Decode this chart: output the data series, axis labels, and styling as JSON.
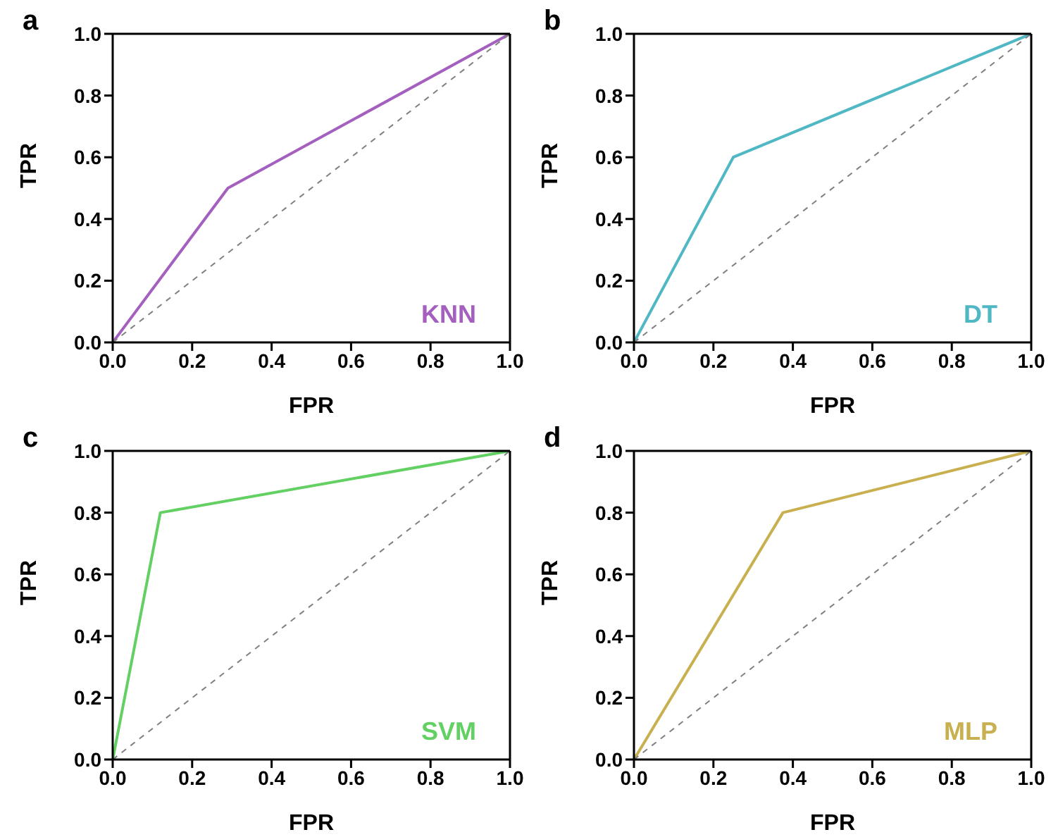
{
  "chart_data": [
    {
      "type": "line",
      "title": "a",
      "xlabel": "FPR",
      "ylabel": "TPR",
      "xlim": [
        0,
        1
      ],
      "ylim": [
        0,
        1
      ],
      "xticks": [
        {
          "value": 0,
          "label": "0.0"
        },
        {
          "value": 0.2,
          "label": "0.2"
        },
        {
          "value": 0.4,
          "label": "0.4"
        },
        {
          "value": 0.6,
          "label": "0.6"
        },
        {
          "value": 0.8,
          "label": "0.8"
        },
        {
          "value": 1,
          "label": "1.0"
        }
      ],
      "yticks": [
        {
          "value": 0,
          "label": "0.0"
        },
        {
          "value": 0.2,
          "label": "0.2"
        },
        {
          "value": 0.4,
          "label": "0.4"
        },
        {
          "value": 0.6,
          "label": "0.6"
        },
        {
          "value": 0.8,
          "label": "0.8"
        },
        {
          "value": 1,
          "label": "1.0"
        }
      ],
      "series": [
        {
          "name": "KNN",
          "color": "#a45fbf",
          "x": [
            0,
            0.29,
            1
          ],
          "values": [
            0,
            0.5,
            1
          ]
        },
        {
          "color": "#808080",
          "line_style": "dashed",
          "x": [
            0,
            1
          ],
          "values": [
            0,
            1
          ]
        }
      ]
    },
    {
      "type": "line",
      "title": "b",
      "xlabel": "FPR",
      "ylabel": "TPR",
      "xlim": [
        0,
        1
      ],
      "ylim": [
        0,
        1
      ],
      "xticks": [
        {
          "value": 0,
          "label": "0.0"
        },
        {
          "value": 0.2,
          "label": "0.2"
        },
        {
          "value": 0.4,
          "label": "0.4"
        },
        {
          "value": 0.6,
          "label": "0.6"
        },
        {
          "value": 0.8,
          "label": "0.8"
        },
        {
          "value": 1,
          "label": "1.0"
        }
      ],
      "yticks": [
        {
          "value": 0,
          "label": "0.0"
        },
        {
          "value": 0.2,
          "label": "0.2"
        },
        {
          "value": 0.4,
          "label": "0.4"
        },
        {
          "value": 0.6,
          "label": "0.6"
        },
        {
          "value": 0.8,
          "label": "0.8"
        },
        {
          "value": 1,
          "label": "1.0"
        }
      ],
      "series": [
        {
          "name": "DT",
          "color": "#4fb8c4",
          "x": [
            0,
            0.25,
            1
          ],
          "values": [
            0,
            0.6,
            1
          ]
        },
        {
          "color": "#808080",
          "line_style": "dashed",
          "x": [
            0,
            1
          ],
          "values": [
            0,
            1
          ]
        }
      ]
    },
    {
      "type": "line",
      "title": "c",
      "xlabel": "FPR",
      "ylabel": "TPR",
      "xlim": [
        0,
        1
      ],
      "ylim": [
        0,
        1
      ],
      "xticks": [
        {
          "value": 0,
          "label": "0.0"
        },
        {
          "value": 0.2,
          "label": "0.2"
        },
        {
          "value": 0.4,
          "label": "0.4"
        },
        {
          "value": 0.6,
          "label": "0.6"
        },
        {
          "value": 0.8,
          "label": "0.8"
        },
        {
          "value": 1,
          "label": "1.0"
        }
      ],
      "yticks": [
        {
          "value": 0,
          "label": "0.0"
        },
        {
          "value": 0.2,
          "label": "0.2"
        },
        {
          "value": 0.4,
          "label": "0.4"
        },
        {
          "value": 0.6,
          "label": "0.6"
        },
        {
          "value": 0.8,
          "label": "0.8"
        },
        {
          "value": 1,
          "label": "1.0"
        }
      ],
      "series": [
        {
          "name": "SVM",
          "color": "#62d062",
          "x": [
            0,
            0.12,
            1
          ],
          "values": [
            0,
            0.8,
            1
          ]
        },
        {
          "color": "#808080",
          "line_style": "dashed",
          "x": [
            0,
            1
          ],
          "values": [
            0,
            1
          ]
        }
      ]
    },
    {
      "type": "line",
      "title": "d",
      "xlabel": "FPR",
      "ylabel": "TPR",
      "xlim": [
        0,
        1
      ],
      "ylim": [
        0,
        1
      ],
      "xticks": [
        {
          "value": 0,
          "label": "0.0"
        },
        {
          "value": 0.2,
          "label": "0.2"
        },
        {
          "value": 0.4,
          "label": "0.4"
        },
        {
          "value": 0.6,
          "label": "0.6"
        },
        {
          "value": 0.8,
          "label": "0.8"
        },
        {
          "value": 1,
          "label": "1.0"
        }
      ],
      "yticks": [
        {
          "value": 0,
          "label": "0.0"
        },
        {
          "value": 0.2,
          "label": "0.2"
        },
        {
          "value": 0.4,
          "label": "0.4"
        },
        {
          "value": 0.6,
          "label": "0.6"
        },
        {
          "value": 0.8,
          "label": "0.8"
        },
        {
          "value": 1,
          "label": "1.0"
        }
      ],
      "series": [
        {
          "name": "MLP",
          "color": "#c8b050",
          "x": [
            0,
            0.375,
            1
          ],
          "values": [
            0,
            0.8,
            1
          ]
        },
        {
          "color": "#808080",
          "line_style": "dashed",
          "x": [
            0,
            1
          ],
          "values": [
            0,
            1
          ]
        }
      ]
    }
  ]
}
